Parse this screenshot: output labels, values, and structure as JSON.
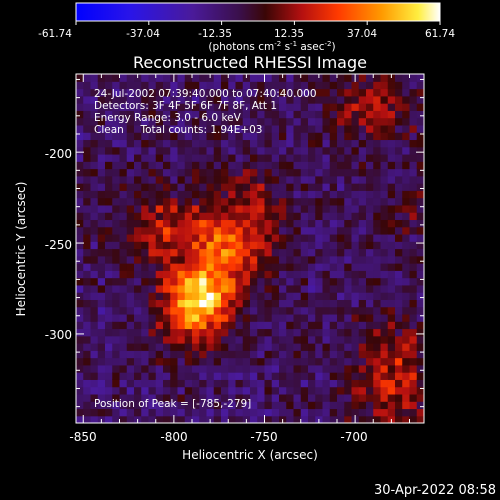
{
  "chart_data": {
    "type": "heatmap",
    "title": "Reconstructed RHESSI Image",
    "xlabel": "Heliocentric X (arcsec)",
    "ylabel": "Heliocentric Y (arcsec)",
    "xlim": [
      -854,
      -662
    ],
    "ylim": [
      -349,
      -157
    ],
    "x_ticks": [
      -850,
      -800,
      -750,
      -700
    ],
    "y_ticks": [
      -200,
      -250,
      -300
    ],
    "colorbar": {
      "ticks": [
        "-61.74",
        "-37.04",
        "-12.35",
        "12.35",
        "37.04",
        "61.74"
      ],
      "range": [
        -61.74,
        61.74
      ],
      "unit": "(photons cm",
      "unit_sup1": "-2",
      "unit_mid": " s",
      "unit_sup2": "-1",
      "unit_mid2": " asec",
      "unit_sup3": "-2",
      "unit_end": ")"
    },
    "info": {
      "line1": "24-Jul-2002 07:39:40.000 to 07:40:40.000",
      "line2": "Detectors: 3F 4F 5F 6F 7F 8F, Att 1",
      "line3": "Energy Range: 3.0 - 6.0 keV",
      "line4": "Clean     Total counts: 1.94E+03"
    },
    "peak_label": "Position of Peak = [-785,-279]",
    "peak": {
      "x": -785,
      "y": -279,
      "value": 61.74
    },
    "sources": [
      {
        "x": -785,
        "y": -279,
        "amp": 62,
        "sx": 13,
        "sy": 11
      },
      {
        "x": -768,
        "y": -250,
        "amp": 40,
        "sx": 16,
        "sy": 14
      },
      {
        "x": -806,
        "y": -242,
        "amp": 24,
        "sx": 18,
        "sy": 16
      },
      {
        "x": -793,
        "y": -299,
        "amp": 20,
        "sx": 14,
        "sy": 10
      },
      {
        "x": -755,
        "y": -222,
        "amp": 14,
        "sx": 12,
        "sy": 12
      },
      {
        "x": -690,
        "y": -175,
        "amp": 22,
        "sx": 16,
        "sy": 14
      },
      {
        "x": -678,
        "y": -325,
        "amp": 26,
        "sx": 16,
        "sy": 22
      },
      {
        "x": -668,
        "y": -232,
        "amp": 10,
        "sx": 10,
        "sy": 12
      }
    ],
    "background_level": -10,
    "colors": {
      "low": "#0000ff",
      "mid": "#5a1f8a",
      "high": "#ffffff"
    }
  },
  "footer_date": "30-Apr-2022 08:58"
}
